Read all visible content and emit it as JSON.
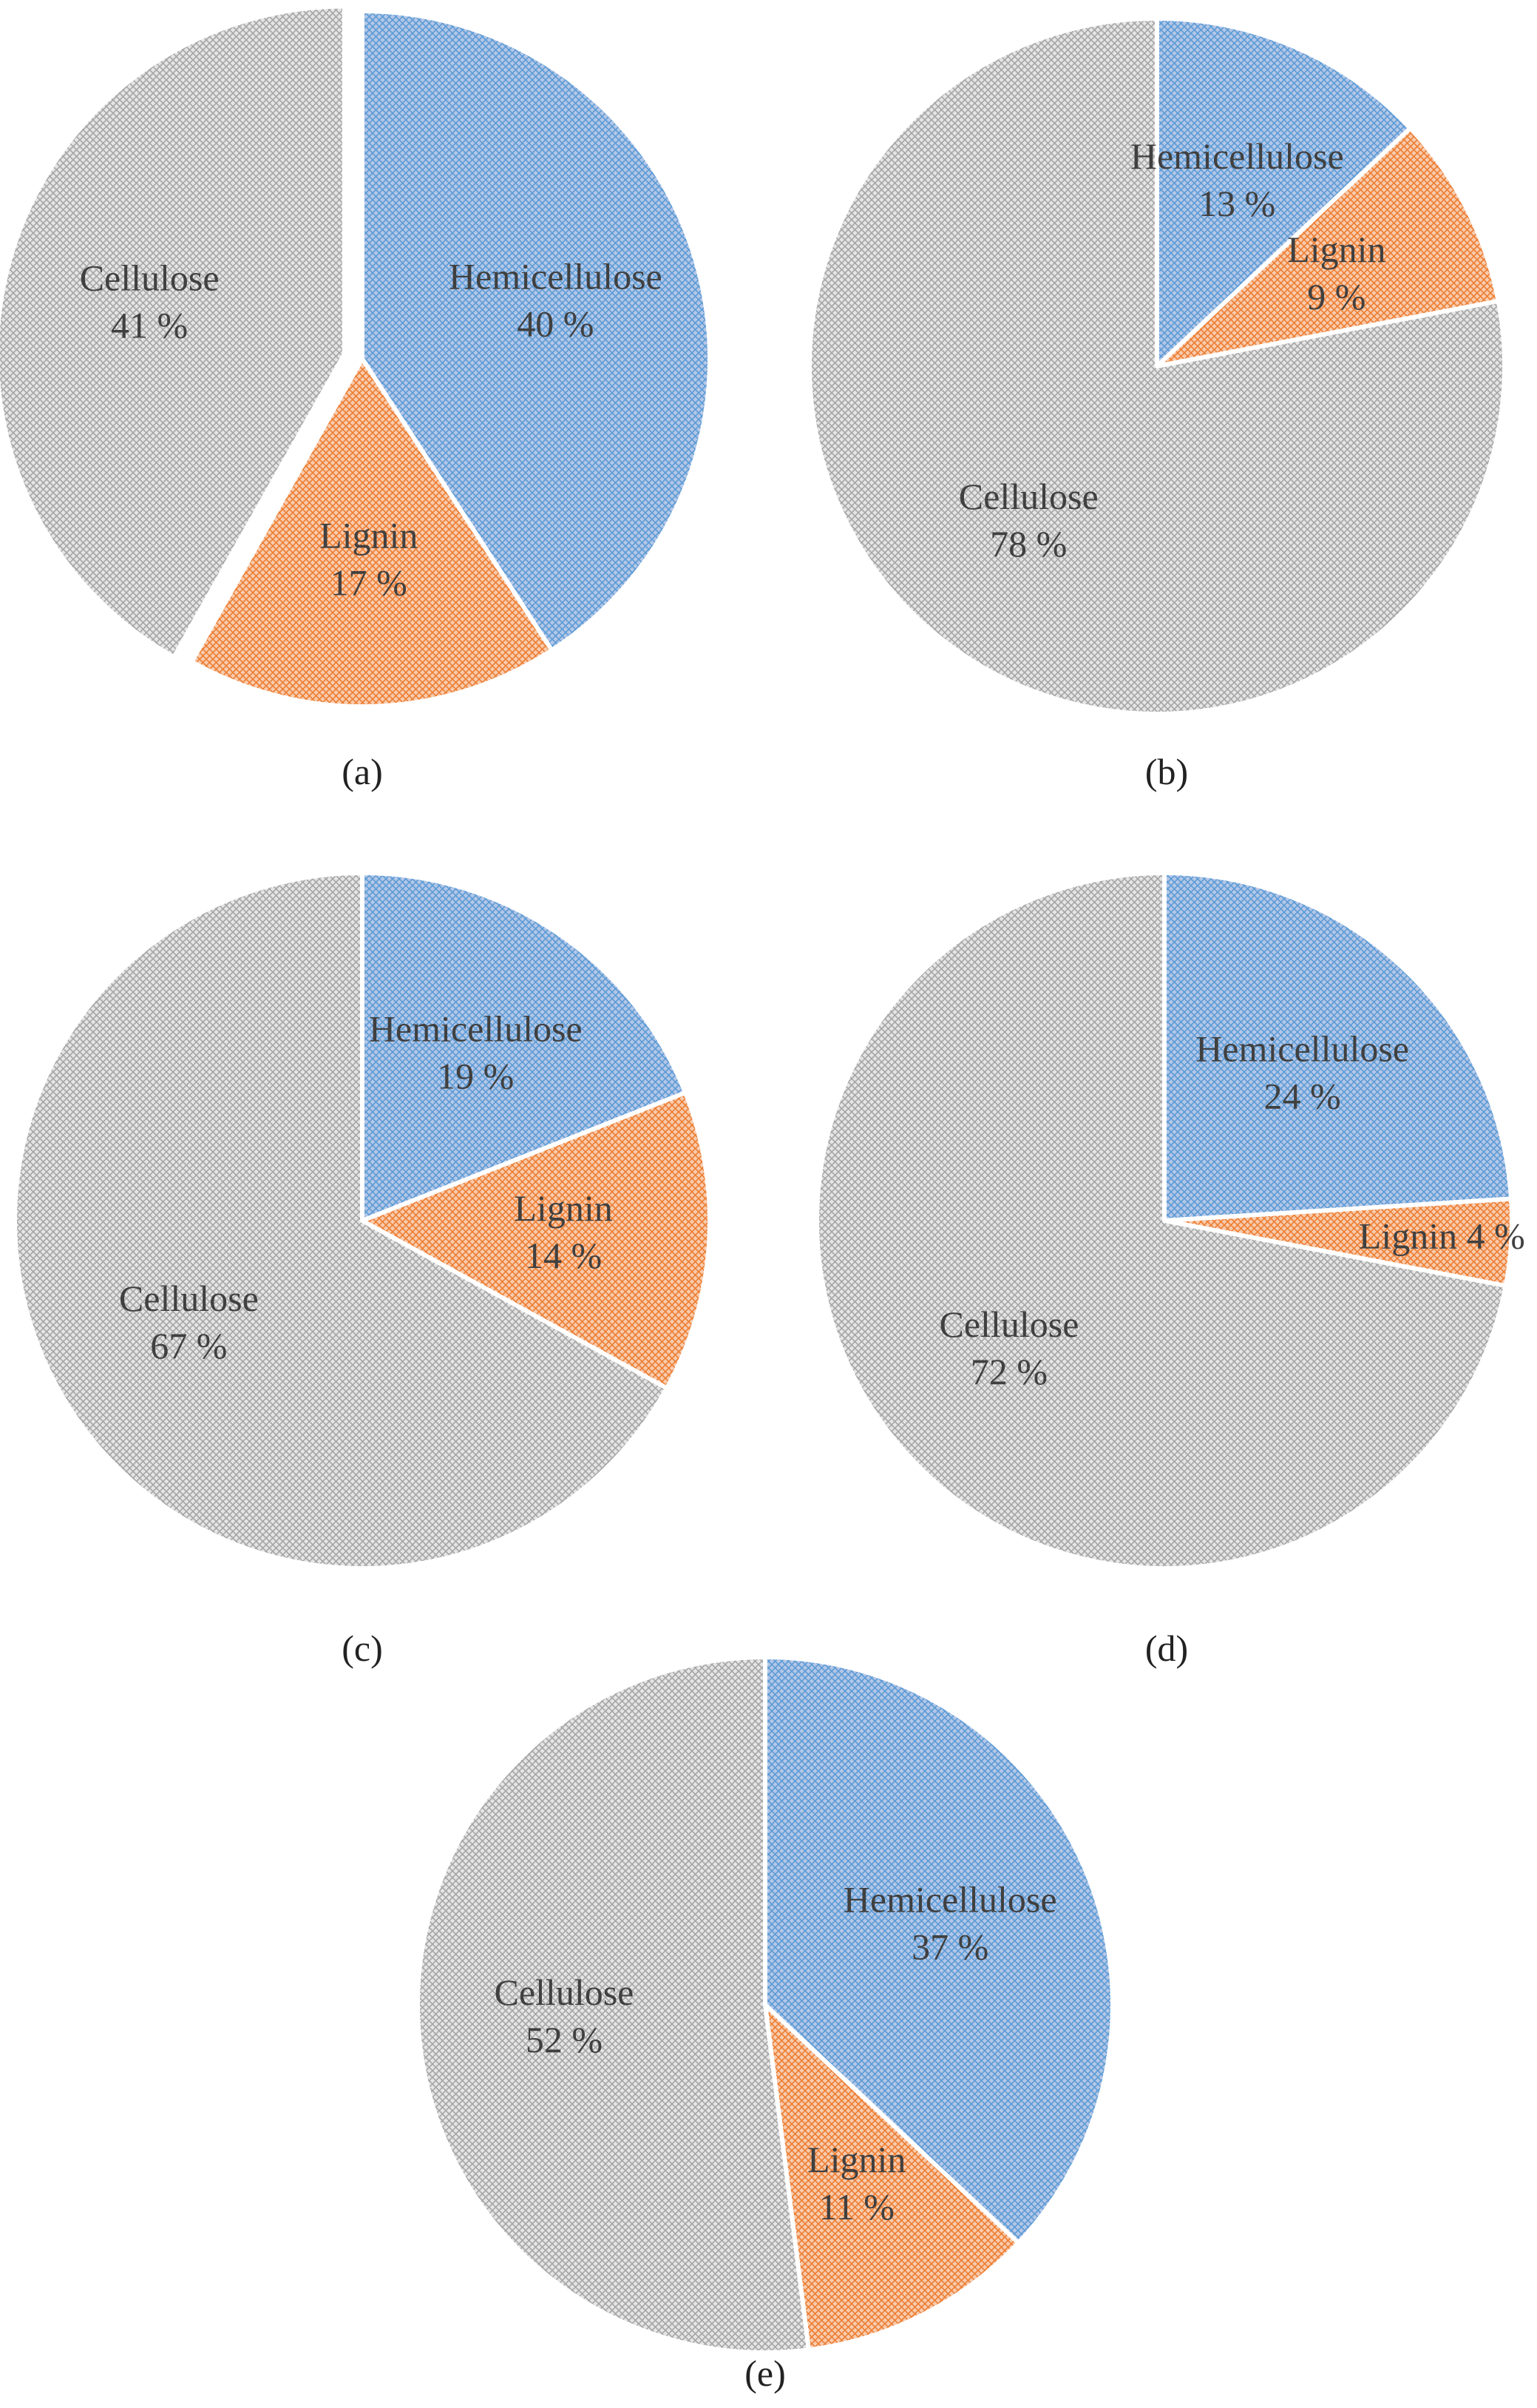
{
  "figure": {
    "description_hint": "Five pie charts of lignocellulosic composition",
    "colors": {
      "hemicellulose": "#b4c7e7",
      "hemicellulose_hatch": "#5b9bd5",
      "lignin": "#f8cbad",
      "lignin_hatch": "#ed7d31",
      "cellulose": "#e5e5e5",
      "cellulose_hatch": "#a5a5a5"
    }
  },
  "chart_data": [
    {
      "type": "pie",
      "title": "(a)",
      "slices": [
        {
          "label": "Hemicellulose",
          "value": 40,
          "display": "40 %",
          "color_key": "hemicellulose"
        },
        {
          "label": "Lignin",
          "value": 17,
          "display": "17 %",
          "color_key": "lignin"
        },
        {
          "label": "Cellulose",
          "value": 41,
          "display": "41 %",
          "color_key": "cellulose",
          "exploded": true
        }
      ]
    },
    {
      "type": "pie",
      "title": "(b)",
      "slices": [
        {
          "label": "Hemicellulose",
          "value": 13,
          "display": "13 %",
          "color_key": "hemicellulose"
        },
        {
          "label": "Lignin",
          "value": 9,
          "display": "9 %",
          "color_key": "lignin"
        },
        {
          "label": "Cellulose",
          "value": 78,
          "display": "78 %",
          "color_key": "cellulose"
        }
      ]
    },
    {
      "type": "pie",
      "title": "(c)",
      "slices": [
        {
          "label": "Hemicellulose",
          "value": 19,
          "display": "19 %",
          "color_key": "hemicellulose"
        },
        {
          "label": "Lignin",
          "value": 14,
          "display": "14 %",
          "color_key": "lignin"
        },
        {
          "label": "Cellulose",
          "value": 67,
          "display": "67 %",
          "color_key": "cellulose"
        }
      ]
    },
    {
      "type": "pie",
      "title": "(d)",
      "slices": [
        {
          "label": "Hemicellulose",
          "value": 24,
          "display": "24 %",
          "color_key": "hemicellulose"
        },
        {
          "label": "Lignin",
          "value": 4,
          "display": "4 %",
          "color_key": "lignin",
          "inline_label": true
        },
        {
          "label": "Cellulose",
          "value": 72,
          "display": "72 %",
          "color_key": "cellulose"
        }
      ]
    },
    {
      "type": "pie",
      "title": "(e)",
      "slices": [
        {
          "label": "Hemicellulose",
          "value": 37,
          "display": "37 %",
          "color_key": "hemicellulose"
        },
        {
          "label": "Lignin",
          "value": 11,
          "display": "11 %",
          "color_key": "lignin"
        },
        {
          "label": "Cellulose",
          "value": 52,
          "display": "52 %",
          "color_key": "cellulose"
        }
      ]
    }
  ]
}
